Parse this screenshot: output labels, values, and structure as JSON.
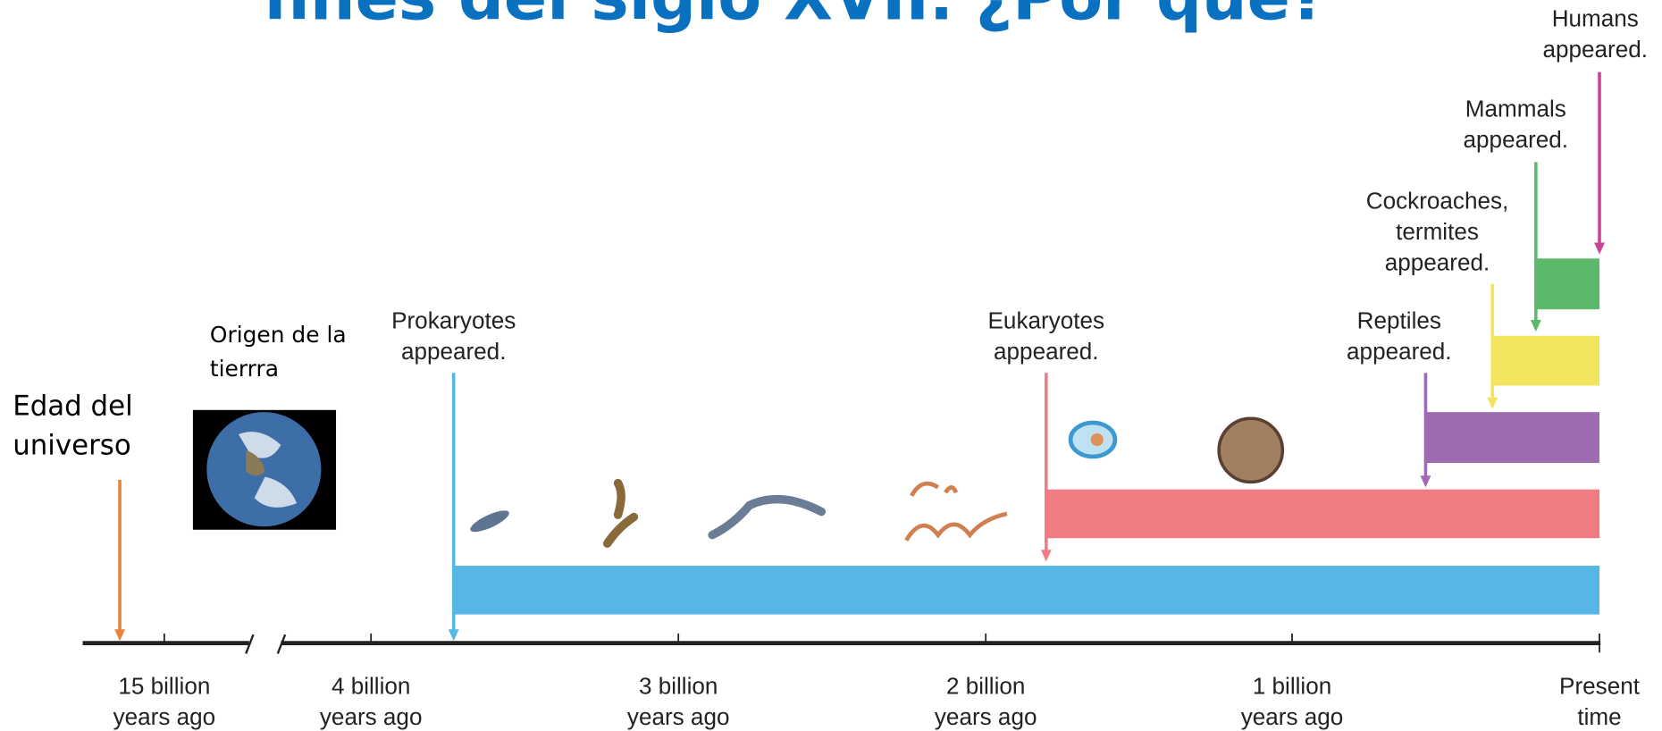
{
  "title": "fines del siglo XVII. ¿Por qué?",
  "notes": {
    "universe": [
      "Edad del",
      "universo"
    ],
    "earth": [
      "Origen de la",
      "tierrra"
    ]
  },
  "events": [
    {
      "label": [
        "Prokaryotes",
        "appeared."
      ]
    },
    {
      "label": [
        "Eukaryotes",
        "appeared."
      ]
    },
    {
      "label": [
        "Reptiles",
        "appeared."
      ]
    },
    {
      "label": [
        "Cockroaches,",
        "termites",
        "appeared."
      ]
    },
    {
      "label": [
        "Mammals",
        "appeared."
      ]
    },
    {
      "label": [
        "Humans",
        "appeared."
      ]
    }
  ],
  "axis_labels": [
    [
      "15 billion",
      "years ago"
    ],
    [
      "4 billion",
      "years ago"
    ],
    [
      "3 billion",
      "years ago"
    ],
    [
      "2 billion",
      "years ago"
    ],
    [
      "1 billion",
      "years ago"
    ],
    [
      "Present",
      "time"
    ]
  ]
}
